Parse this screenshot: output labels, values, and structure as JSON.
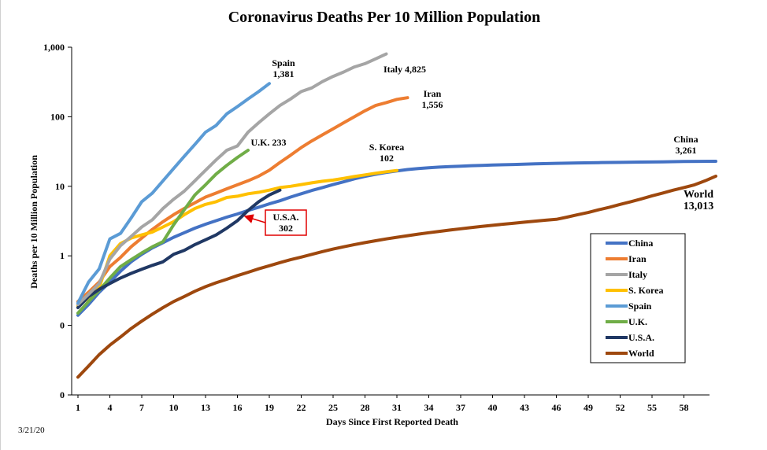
{
  "date_stamp": "3/21/20",
  "chart_data": {
    "type": "line",
    "title": "Coronavirus Deaths Per 10 Million Population",
    "xlabel": "Days Since First Reported Death",
    "ylabel": "Deaths per 10 Million Population",
    "y_scale": "log",
    "ylim": [
      0.01,
      1000
    ],
    "xlim": [
      1,
      61
    ],
    "x_ticks": [
      1,
      4,
      7,
      10,
      13,
      16,
      19,
      22,
      25,
      28,
      31,
      34,
      37,
      40,
      43,
      46,
      49,
      52,
      55,
      58
    ],
    "y_ticks": [
      {
        "value": 0.01,
        "label": "0"
      },
      {
        "value": 0.1,
        "label": "0"
      },
      {
        "value": 1,
        "label": "1"
      },
      {
        "value": 10,
        "label": "10"
      },
      {
        "value": 100,
        "label": "100"
      },
      {
        "value": 1000,
        "label": "1,000"
      }
    ],
    "grid": false,
    "legend_position": "right",
    "series": [
      {
        "name": "China",
        "color": "#4472c4",
        "points": [
          [
            1,
            0.14
          ],
          [
            2,
            0.2
          ],
          [
            3,
            0.3
          ],
          [
            4,
            0.42
          ],
          [
            5,
            0.6
          ],
          [
            6,
            0.82
          ],
          [
            7,
            1.05
          ],
          [
            8,
            1.3
          ],
          [
            9,
            1.55
          ],
          [
            10,
            1.85
          ],
          [
            11,
            2.15
          ],
          [
            12,
            2.5
          ],
          [
            13,
            2.85
          ],
          [
            14,
            3.2
          ],
          [
            15,
            3.6
          ],
          [
            16,
            4.0
          ],
          [
            17,
            4.5
          ],
          [
            18,
            5.0
          ],
          [
            19,
            5.6
          ],
          [
            20,
            6.2
          ],
          [
            21,
            7.0
          ],
          [
            22,
            7.8
          ],
          [
            23,
            8.7
          ],
          [
            24,
            9.6
          ],
          [
            25,
            10.6
          ],
          [
            26,
            11.6
          ],
          [
            27,
            12.8
          ],
          [
            28,
            13.9
          ],
          [
            29,
            14.9
          ],
          [
            30,
            15.8
          ],
          [
            31,
            16.6
          ],
          [
            32,
            17.4
          ],
          [
            33,
            18.0
          ],
          [
            34,
            18.5
          ],
          [
            35,
            18.9
          ],
          [
            36,
            19.2
          ],
          [
            37,
            19.5
          ],
          [
            38,
            19.8
          ],
          [
            39,
            20.0
          ],
          [
            40,
            20.2
          ],
          [
            42,
            20.6
          ],
          [
            44,
            21.0
          ],
          [
            46,
            21.4
          ],
          [
            48,
            21.7
          ],
          [
            50,
            21.9
          ],
          [
            52,
            22.1
          ],
          [
            54,
            22.3
          ],
          [
            56,
            22.5
          ],
          [
            58,
            22.7
          ],
          [
            61,
            22.9
          ]
        ]
      },
      {
        "name": "Iran",
        "color": "#ed7d31",
        "points": [
          [
            1,
            0.22
          ],
          [
            2,
            0.3
          ],
          [
            3,
            0.42
          ],
          [
            4,
            0.7
          ],
          [
            5,
            0.95
          ],
          [
            6,
            1.35
          ],
          [
            7,
            1.8
          ],
          [
            8,
            2.4
          ],
          [
            9,
            3.1
          ],
          [
            10,
            3.9
          ],
          [
            11,
            4.8
          ],
          [
            12,
            5.8
          ],
          [
            13,
            7.0
          ],
          [
            14,
            8.0
          ],
          [
            15,
            9.2
          ],
          [
            16,
            10.5
          ],
          [
            17,
            12.0
          ],
          [
            18,
            14.0
          ],
          [
            19,
            17.0
          ],
          [
            20,
            22.0
          ],
          [
            21,
            28
          ],
          [
            22,
            36
          ],
          [
            23,
            45
          ],
          [
            24,
            55
          ],
          [
            25,
            67
          ],
          [
            26,
            82
          ],
          [
            27,
            100
          ],
          [
            28,
            122
          ],
          [
            29,
            145
          ],
          [
            30,
            160
          ],
          [
            31,
            178
          ],
          [
            32,
            188
          ]
        ]
      },
      {
        "name": "Italy",
        "color": "#a5a5a5",
        "points": [
          [
            1,
            0.2
          ],
          [
            2,
            0.28
          ],
          [
            3,
            0.4
          ],
          [
            4,
            0.9
          ],
          [
            5,
            1.4
          ],
          [
            6,
            1.9
          ],
          [
            7,
            2.6
          ],
          [
            8,
            3.3
          ],
          [
            9,
            4.8
          ],
          [
            10,
            6.5
          ],
          [
            11,
            8.5
          ],
          [
            12,
            12
          ],
          [
            13,
            17
          ],
          [
            14,
            24
          ],
          [
            15,
            33
          ],
          [
            16,
            38
          ],
          [
            17,
            60
          ],
          [
            18,
            82
          ],
          [
            19,
            110
          ],
          [
            20,
            145
          ],
          [
            21,
            180
          ],
          [
            22,
            230
          ],
          [
            23,
            260
          ],
          [
            24,
            320
          ],
          [
            25,
            380
          ],
          [
            26,
            440
          ],
          [
            27,
            520
          ],
          [
            28,
            580
          ],
          [
            29,
            680
          ],
          [
            30,
            800
          ]
        ]
      },
      {
        "name": "S. Korea",
        "color": "#ffc000",
        "points": [
          [
            1,
            0.19
          ],
          [
            2,
            0.25
          ],
          [
            3,
            0.35
          ],
          [
            4,
            1.0
          ],
          [
            5,
            1.5
          ],
          [
            6,
            1.8
          ],
          [
            7,
            2.0
          ],
          [
            8,
            2.2
          ],
          [
            9,
            2.6
          ],
          [
            10,
            3.1
          ],
          [
            11,
            3.9
          ],
          [
            12,
            4.8
          ],
          [
            13,
            5.5
          ],
          [
            14,
            6.0
          ],
          [
            15,
            6.9
          ],
          [
            16,
            7.2
          ],
          [
            17,
            7.8
          ],
          [
            18,
            8.2
          ],
          [
            19,
            8.8
          ],
          [
            20,
            9.6
          ],
          [
            21,
            10.0
          ],
          [
            22,
            10.6
          ],
          [
            23,
            11.2
          ],
          [
            24,
            11.8
          ],
          [
            25,
            12.3
          ],
          [
            26,
            13.0
          ],
          [
            27,
            13.8
          ],
          [
            28,
            14.6
          ],
          [
            29,
            15.4
          ],
          [
            30,
            16.2
          ],
          [
            31,
            16.9
          ]
        ]
      },
      {
        "name": "Spain",
        "color": "#5b9bd5",
        "points": [
          [
            1,
            0.21
          ],
          [
            2,
            0.42
          ],
          [
            3,
            0.65
          ],
          [
            4,
            1.75
          ],
          [
            5,
            2.1
          ],
          [
            6,
            3.5
          ],
          [
            7,
            6.0
          ],
          [
            8,
            8.0
          ],
          [
            9,
            12
          ],
          [
            10,
            18
          ],
          [
            11,
            27
          ],
          [
            12,
            40
          ],
          [
            13,
            60
          ],
          [
            14,
            75
          ],
          [
            15,
            110
          ],
          [
            16,
            140
          ],
          [
            17,
            180
          ],
          [
            18,
            230
          ],
          [
            19,
            300
          ]
        ]
      },
      {
        "name": "U.K.",
        "color": "#70ad47",
        "points": [
          [
            1,
            0.15
          ],
          [
            2,
            0.22
          ],
          [
            3,
            0.32
          ],
          [
            4,
            0.48
          ],
          [
            5,
            0.7
          ],
          [
            6,
            0.88
          ],
          [
            7,
            1.1
          ],
          [
            8,
            1.35
          ],
          [
            9,
            1.6
          ],
          [
            10,
            2.8
          ],
          [
            11,
            4.6
          ],
          [
            12,
            7.5
          ],
          [
            13,
            10.5
          ],
          [
            14,
            15
          ],
          [
            15,
            20
          ],
          [
            16,
            26
          ],
          [
            17,
            33
          ]
        ]
      },
      {
        "name": "U.S.A.",
        "color": "#203864",
        "points": [
          [
            1,
            0.18
          ],
          [
            2,
            0.26
          ],
          [
            3,
            0.33
          ],
          [
            4,
            0.4
          ],
          [
            5,
            0.48
          ],
          [
            6,
            0.56
          ],
          [
            7,
            0.64
          ],
          [
            8,
            0.73
          ],
          [
            9,
            0.82
          ],
          [
            10,
            1.05
          ],
          [
            11,
            1.2
          ],
          [
            12,
            1.45
          ],
          [
            13,
            1.7
          ],
          [
            14,
            2.0
          ],
          [
            15,
            2.5
          ],
          [
            16,
            3.2
          ],
          [
            17,
            4.5
          ],
          [
            18,
            6.0
          ],
          [
            19,
            7.5
          ],
          [
            20,
            8.8
          ]
        ]
      },
      {
        "name": "World",
        "color": "#9e480e",
        "points": [
          [
            1,
            0.018
          ],
          [
            2,
            0.026
          ],
          [
            3,
            0.038
          ],
          [
            4,
            0.052
          ],
          [
            5,
            0.068
          ],
          [
            6,
            0.09
          ],
          [
            7,
            0.115
          ],
          [
            8,
            0.145
          ],
          [
            9,
            0.18
          ],
          [
            10,
            0.22
          ],
          [
            11,
            0.26
          ],
          [
            12,
            0.31
          ],
          [
            13,
            0.36
          ],
          [
            14,
            0.41
          ],
          [
            15,
            0.46
          ],
          [
            16,
            0.52
          ],
          [
            17,
            0.58
          ],
          [
            18,
            0.65
          ],
          [
            19,
            0.72
          ],
          [
            20,
            0.8
          ],
          [
            21,
            0.88
          ],
          [
            22,
            0.96
          ],
          [
            23,
            1.05
          ],
          [
            24,
            1.15
          ],
          [
            25,
            1.25
          ],
          [
            26,
            1.35
          ],
          [
            27,
            1.45
          ],
          [
            28,
            1.55
          ],
          [
            29,
            1.65
          ],
          [
            30,
            1.75
          ],
          [
            31,
            1.85
          ],
          [
            32,
            1.95
          ],
          [
            33,
            2.05
          ],
          [
            34,
            2.15
          ],
          [
            35,
            2.25
          ],
          [
            36,
            2.35
          ],
          [
            37,
            2.45
          ],
          [
            38,
            2.55
          ],
          [
            39,
            2.65
          ],
          [
            40,
            2.75
          ],
          [
            41,
            2.85
          ],
          [
            42,
            2.95
          ],
          [
            43,
            3.05
          ],
          [
            44,
            3.15
          ],
          [
            45,
            3.25
          ],
          [
            46,
            3.35
          ],
          [
            47,
            3.6
          ],
          [
            48,
            3.9
          ],
          [
            49,
            4.2
          ],
          [
            50,
            4.6
          ],
          [
            51,
            5.0
          ],
          [
            52,
            5.5
          ],
          [
            53,
            6.0
          ],
          [
            54,
            6.6
          ],
          [
            55,
            7.3
          ],
          [
            56,
            8.0
          ],
          [
            57,
            8.8
          ],
          [
            58,
            9.6
          ],
          [
            59,
            10.5
          ],
          [
            60,
            12.0
          ],
          [
            61,
            14.0
          ]
        ]
      }
    ],
    "annotations": [
      {
        "lines": [
          "Spain",
          "1,381"
        ]
      },
      {
        "lines": [
          "Italy 4,825"
        ]
      },
      {
        "lines": [
          "Iran",
          "1,556"
        ]
      },
      {
        "lines": [
          "U.K. 233"
        ]
      },
      {
        "lines": [
          "S. Korea",
          "102"
        ]
      },
      {
        "lines": [
          "China",
          "3,261"
        ]
      },
      {
        "lines": [
          "World",
          "13,013"
        ]
      },
      {
        "lines": [
          "U.S.A.",
          "302"
        ]
      }
    ]
  }
}
